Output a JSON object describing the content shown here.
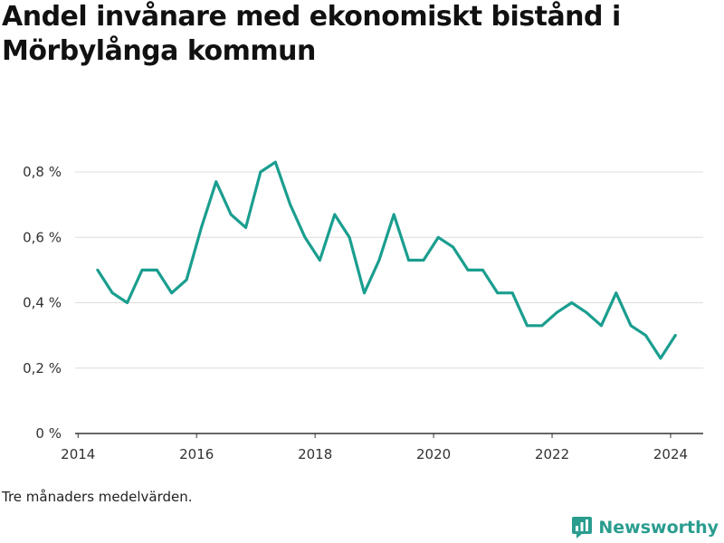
{
  "title": "Andel invånare med ekonomiskt bistånd i Mörbylånga kommun",
  "note": "Tre månaders medelvärden.",
  "brand": "Newsworthy",
  "icons": {
    "brand": "newsworthy-logo-icon"
  },
  "colors": {
    "line": "#1a9e8f",
    "grid": "#dddddd",
    "axis": "#333333",
    "brand": "#2a9d8f"
  },
  "chart_data": {
    "type": "line",
    "title": "Andel invånare med ekonomiskt bistånd i Mörbylånga kommun",
    "xlabel": "",
    "ylabel": "",
    "xlim": [
      2013.95,
      2024.55
    ],
    "ylim": [
      0,
      0.8
    ],
    "grid": true,
    "x_ticks": [
      2014,
      2016,
      2018,
      2020,
      2022,
      2024
    ],
    "x_tick_labels": [
      "2014",
      "2016",
      "2018",
      "2020",
      "2022",
      "2024"
    ],
    "y_ticks": [
      0,
      0.2,
      0.4,
      0.6,
      0.8
    ],
    "y_tick_labels": [
      "0 %",
      "0,2 %",
      "0,4 %",
      "0,6 %",
      "0,8 %"
    ],
    "series": [
      {
        "x": [
          2014.33,
          2014.58,
          2014.83,
          2015.08,
          2015.33,
          2015.58,
          2015.83,
          2016.08,
          2016.33,
          2016.58,
          2016.83,
          2017.08,
          2017.33,
          2017.58,
          2017.83,
          2018.08,
          2018.33,
          2018.58,
          2018.83,
          2019.08,
          2019.33,
          2019.58,
          2019.83,
          2020.08,
          2020.33,
          2020.58,
          2020.83,
          2021.08,
          2021.33,
          2021.58,
          2021.83,
          2022.08,
          2022.33,
          2022.58,
          2022.83,
          2023.08,
          2023.33,
          2023.58,
          2023.83,
          2024.08
        ],
        "values": [
          0.5,
          0.43,
          0.4,
          0.5,
          0.5,
          0.43,
          0.47,
          0.63,
          0.77,
          0.67,
          0.63,
          0.8,
          0.83,
          0.7,
          0.6,
          0.53,
          0.67,
          0.6,
          0.43,
          0.53,
          0.67,
          0.53,
          0.53,
          0.6,
          0.57,
          0.5,
          0.5,
          0.43,
          0.43,
          0.33,
          0.33,
          0.37,
          0.4,
          0.37,
          0.33,
          0.43,
          0.33,
          0.3,
          0.23,
          0.3
        ]
      }
    ]
  }
}
